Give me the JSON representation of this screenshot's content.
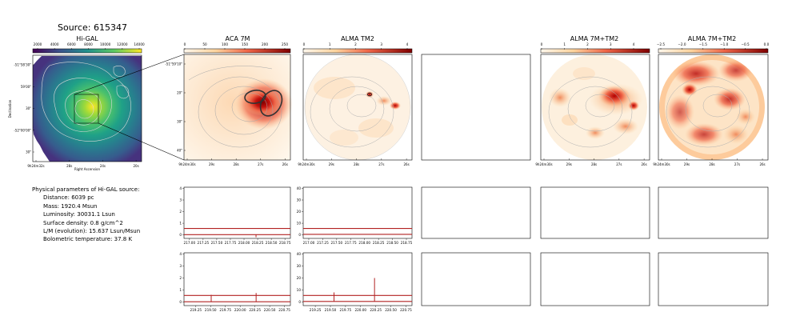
{
  "source_title": "Source: 615347",
  "panel_titles": [
    "Hi-GAL",
    "ACA 7M",
    "ALMA TM2",
    "",
    "ALMA 7M+TM2",
    "ALMA 7M+TM2"
  ],
  "colorbars": {
    "higal": {
      "ticks": [
        "2000",
        "4000",
        "6000",
        "8000",
        "10000",
        "12000",
        "14000"
      ]
    },
    "aca": {
      "ticks": [
        "0",
        "50",
        "100",
        "150",
        "200",
        "250"
      ]
    },
    "tm2": {
      "ticks": [
        "0",
        "1",
        "2",
        "3",
        "4"
      ]
    },
    "combo": {
      "ticks": [
        "0",
        "1",
        "2",
        "3",
        "4"
      ]
    },
    "log": {
      "ticks": [
        "−2.5",
        "−2.0",
        "−1.5",
        "−1.0",
        "−0.5",
        "0.0"
      ]
    }
  },
  "higal_axes": {
    "ylabel": "Declination",
    "xlabel": "Right Ascension",
    "yticks": [
      "-51°58'30\"",
      "59'00\"",
      "30\"",
      "-52°00'00\"",
      "30\""
    ],
    "xticks": [
      "9h24m32s",
      "28s",
      "24s",
      "20s"
    ]
  },
  "map_axes": {
    "yticks": [
      "-51°59'10\"",
      "20\"",
      "30\"",
      "40\""
    ],
    "xticks": [
      "9h24m30s",
      "29s",
      "28s",
      "27s",
      "26s"
    ]
  },
  "info": {
    "heading": "Physical parameters of Hi-GAL source:",
    "lines": [
      "Distance: 6039 pc",
      "Mass: 1920.4 Msun",
      "Luminosity: 30031.1 Lsun",
      "Surface density: 0.8 g/cm^2",
      "L/M (evolution): 15.637 Lsun/Msun",
      "Bolometric temperature: 37.8 K"
    ]
  },
  "spectra": {
    "row1_xticks": [
      "217.00",
      "217.25",
      "217.50",
      "217.75",
      "218.00",
      "218.25",
      "218.50",
      "218.75"
    ],
    "row2_xticks_aca": [
      "219.25",
      "219.50",
      "219.75",
      "220.00",
      "220.25",
      "220.50",
      "220.75"
    ],
    "row2_xticks_tm2": [
      "219.25",
      "219.50",
      "219.75",
      "220.00",
      "220.25",
      "220.50",
      "220.75"
    ],
    "aca_yticks": [
      "0",
      "1",
      "2",
      "3",
      "4"
    ],
    "tm2_yticks": [
      "0",
      "10",
      "20",
      "30",
      "40"
    ]
  },
  "colors": {
    "line": "#b22222",
    "contour": "#a0a0a0"
  },
  "chart_data": [
    {
      "type": "line",
      "title": "ACA 7M",
      "x_range": [
        216.9,
        218.85
      ],
      "ylim": [
        -0.3,
        4.1
      ],
      "series": [
        {
          "x": [
            216.9,
            218.85
          ],
          "y": [
            0.02,
            0.02
          ]
        },
        {
          "x": [
            216.9,
            218.85
          ],
          "y": [
            0.55,
            0.55
          ]
        }
      ],
      "spikes": [
        {
          "x": 218.22,
          "y": -0.2
        }
      ]
    },
    {
      "type": "line",
      "title": "ALMA TM2",
      "x_range": [
        216.9,
        218.85
      ],
      "ylim": [
        -3,
        41
      ],
      "series": [
        {
          "x": [
            216.9,
            218.85
          ],
          "y": [
            0.5,
            0.5
          ]
        },
        {
          "x": [
            216.9,
            218.85
          ],
          "y": [
            5.5,
            5.5
          ]
        }
      ]
    },
    {
      "type": "line",
      "title": "ACA 7M",
      "x_range": [
        219.05,
        220.85
      ],
      "ylim": [
        -0.3,
        4.1
      ],
      "series": [
        {
          "x": [
            219.05,
            220.85
          ],
          "y": [
            0.02,
            0.02
          ]
        },
        {
          "x": [
            219.05,
            220.85
          ],
          "y": [
            0.55,
            0.55
          ]
        }
      ],
      "spikes": [
        {
          "x": 219.51,
          "y": 0.6
        },
        {
          "x": 220.27,
          "y": 0.75
        }
      ]
    },
    {
      "type": "line",
      "title": "ALMA TM2",
      "x_range": [
        219.05,
        220.85
      ],
      "ylim": [
        -3,
        41
      ],
      "series": [
        {
          "x": [
            219.05,
            220.85
          ],
          "y": [
            0.5,
            0.5
          ]
        },
        {
          "x": [
            219.05,
            220.85
          ],
          "y": [
            5.5,
            5.5
          ]
        }
      ],
      "spikes": [
        {
          "x": 219.56,
          "y": 8
        },
        {
          "x": 220.23,
          "y": 20
        }
      ]
    }
  ]
}
